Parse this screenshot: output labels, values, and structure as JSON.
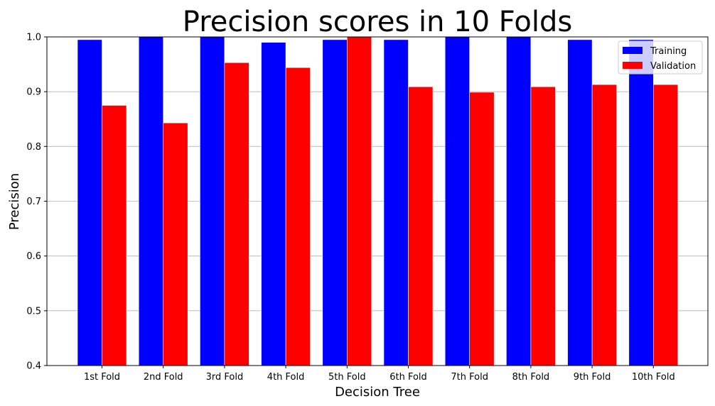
{
  "chart_data": {
    "type": "bar",
    "title": "Precision scores in 10 Folds",
    "xlabel": "Decision Tree",
    "ylabel": "Precision",
    "ylim": [
      0.4,
      1.0
    ],
    "yticks": [
      "0.4",
      "0.5",
      "0.6",
      "0.7",
      "0.8",
      "0.9",
      "1.0"
    ],
    "categories": [
      "1st Fold",
      "2nd Fold",
      "3rd Fold",
      "4th Fold",
      "5th Fold",
      "6th Fold",
      "7th Fold",
      "8th Fold",
      "9th Fold",
      "10th Fold"
    ],
    "series": [
      {
        "name": "Training",
        "color": "#0000ff",
        "values": [
          0.995,
          1.0,
          1.0,
          0.99,
          0.995,
          0.995,
          1.0,
          1.0,
          0.995,
          0.995
        ]
      },
      {
        "name": "Validation",
        "color": "#ff0000",
        "values": [
          0.875,
          0.843,
          0.953,
          0.944,
          1.0,
          0.909,
          0.899,
          0.909,
          0.913,
          0.913
        ]
      }
    ],
    "grid": "y",
    "legend": "top-right"
  }
}
